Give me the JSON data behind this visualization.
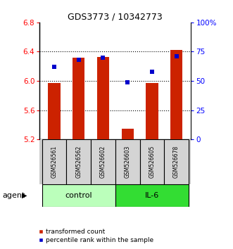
{
  "title": "GDS3773 / 10342773",
  "samples": [
    "GSM526561",
    "GSM526562",
    "GSM526602",
    "GSM526603",
    "GSM526605",
    "GSM526678"
  ],
  "bar_values": [
    5.97,
    6.32,
    6.33,
    5.35,
    5.97,
    6.42
  ],
  "percentile_values": [
    62,
    68,
    70,
    49,
    58,
    71
  ],
  "bar_color": "#cc2200",
  "dot_color": "#0000cc",
  "ylim_left": [
    5.2,
    6.8
  ],
  "ylim_right": [
    0,
    100
  ],
  "yticks_left": [
    5.2,
    5.6,
    6.0,
    6.4,
    6.8
  ],
  "yticks_right": [
    0,
    25,
    50,
    75,
    100
  ],
  "ytick_labels_right": [
    "0",
    "25",
    "50",
    "75",
    "100%"
  ],
  "ybase": 5.2,
  "groups": [
    {
      "label": "control",
      "indices": [
        0,
        1,
        2
      ],
      "color": "#bbffbb"
    },
    {
      "label": "IL-6",
      "indices": [
        3,
        4,
        5
      ],
      "color": "#33dd33"
    }
  ],
  "legend_items": [
    {
      "label": "transformed count",
      "color": "#cc2200"
    },
    {
      "label": "percentile rank within the sample",
      "color": "#0000cc"
    }
  ],
  "bar_width": 0.5,
  "agent_label": "agent"
}
